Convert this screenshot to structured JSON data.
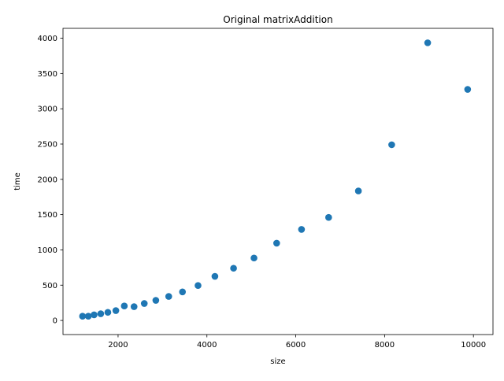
{
  "chart_data": {
    "type": "scatter",
    "title": "Original matrixAddition",
    "xlabel": "size",
    "ylabel": "time",
    "xlim": [
      760,
      10440
    ],
    "ylim": [
      -200,
      4140
    ],
    "x_ticks": [
      2000,
      4000,
      6000,
      8000,
      10000
    ],
    "y_ticks": [
      0,
      500,
      1000,
      1500,
      2000,
      2500,
      3000,
      3500,
      4000
    ],
    "grid": false,
    "legend": "none",
    "marker_color": "#1f77b4",
    "points": [
      {
        "x": 1200,
        "y": 60
      },
      {
        "x": 1330,
        "y": 60
      },
      {
        "x": 1460,
        "y": 80
      },
      {
        "x": 1610,
        "y": 95
      },
      {
        "x": 1770,
        "y": 115
      },
      {
        "x": 1950,
        "y": 140
      },
      {
        "x": 2140,
        "y": 205
      },
      {
        "x": 2360,
        "y": 195
      },
      {
        "x": 2590,
        "y": 240
      },
      {
        "x": 2850,
        "y": 285
      },
      {
        "x": 3140,
        "y": 340
      },
      {
        "x": 3450,
        "y": 405
      },
      {
        "x": 3800,
        "y": 495
      },
      {
        "x": 4180,
        "y": 625
      },
      {
        "x": 4600,
        "y": 740
      },
      {
        "x": 5060,
        "y": 885
      },
      {
        "x": 5570,
        "y": 1095
      },
      {
        "x": 6130,
        "y": 1290
      },
      {
        "x": 6740,
        "y": 1460
      },
      {
        "x": 7410,
        "y": 1835
      },
      {
        "x": 8160,
        "y": 2490
      },
      {
        "x": 8970,
        "y": 3935
      },
      {
        "x": 9870,
        "y": 3275
      }
    ]
  }
}
